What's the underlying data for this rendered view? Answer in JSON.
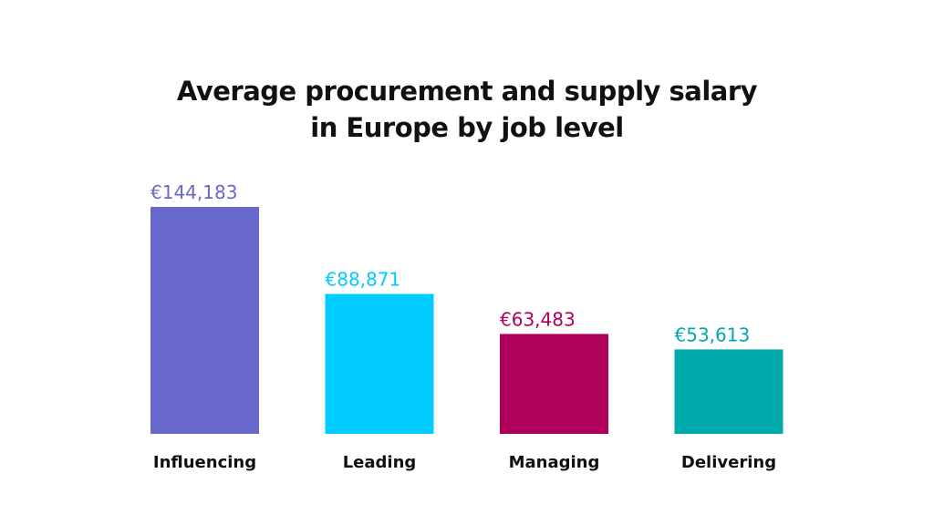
{
  "chart_data": {
    "type": "bar",
    "title_line1": "Average procurement and supply salary",
    "title_line2": "in Europe by job level",
    "categories": [
      "Influencing",
      "Leading",
      "Managing",
      "Delivering"
    ],
    "values": [
      144183,
      88871,
      63483,
      53613
    ],
    "value_labels": [
      "€144,183",
      "€88,871",
      "€63,483",
      "€53,613"
    ],
    "colors": [
      "#6767cc",
      "#00ccff",
      "#b0005a",
      "#00aaaa"
    ],
    "xlabel": "",
    "ylabel": "",
    "ylim": [
      0,
      144183
    ],
    "grid": false,
    "legend": "none"
  }
}
